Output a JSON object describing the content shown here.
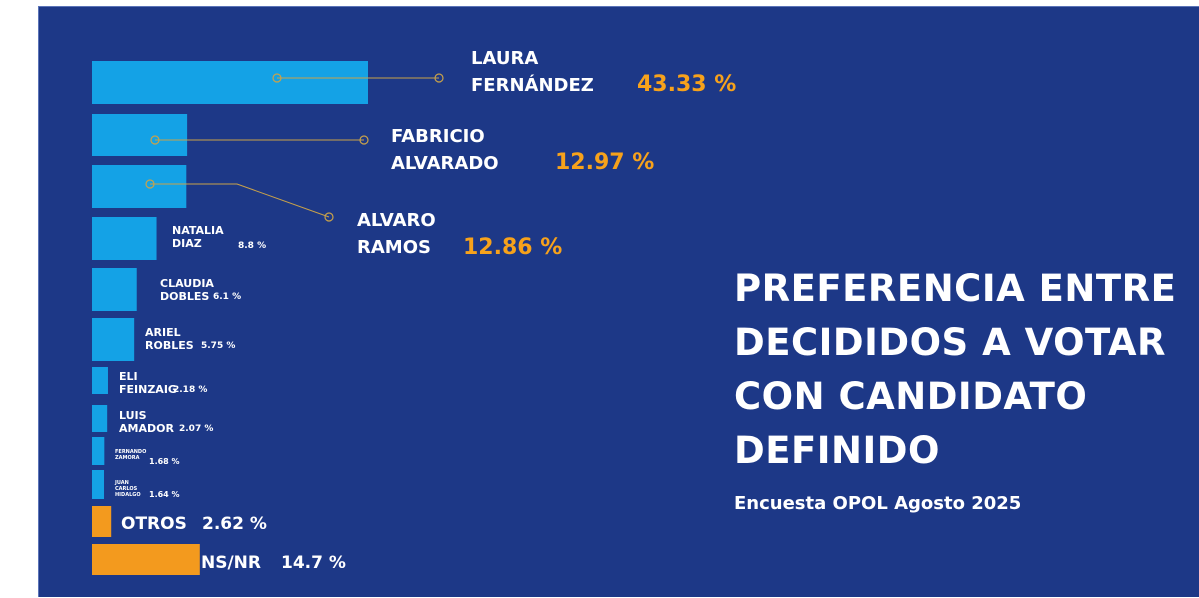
{
  "chart_data": {
    "type": "bar",
    "orientation": "horizontal",
    "title_lines": [
      "PREFERENCIA ENTRE",
      "DECIDIDOS A VOTAR",
      "CON CANDIDATO",
      "DEFINIDO"
    ],
    "subtitle": "Encuesta OPOL Agosto 2025",
    "xlim": [
      0,
      45
    ],
    "grid": false,
    "legend": "none",
    "bars": [
      {
        "label_lines": [
          "LAURA",
          "FERNÁNDEZ"
        ],
        "value_label": "43.33 %",
        "value": 43.33,
        "color": "#14a2e6",
        "style": "callout-large"
      },
      {
        "label_lines": [
          "FABRICIO",
          "ALVARADO"
        ],
        "value_label": "12.97 %",
        "value": 12.97,
        "color": "#14a2e6",
        "style": "callout-large"
      },
      {
        "label_lines": [
          "ALVARO",
          "RAMOS"
        ],
        "value_label": "12.86 %",
        "value": 12.86,
        "color": "#14a2e6",
        "style": "callout-large"
      },
      {
        "label_lines": [
          "NATALIA",
          "DIAZ"
        ],
        "value_label": "8.8 %",
        "value": 8.8,
        "color": "#14a2e6",
        "style": "small"
      },
      {
        "label_lines": [
          "CLAUDIA",
          "DOBLES"
        ],
        "value_label": "6.1 %",
        "value": 6.1,
        "color": "#14a2e6",
        "style": "small"
      },
      {
        "label_lines": [
          "ARIEL",
          "ROBLES"
        ],
        "value_label": "5.75 %",
        "value": 5.75,
        "color": "#14a2e6",
        "style": "small"
      },
      {
        "label_lines": [
          "ELI",
          "FEINZAIG"
        ],
        "value_label": "2.18 %",
        "value": 2.18,
        "color": "#14a2e6",
        "style": "small"
      },
      {
        "label_lines": [
          "LUIS",
          "AMADOR"
        ],
        "value_label": "2.07 %",
        "value": 2.07,
        "color": "#14a2e6",
        "style": "small"
      },
      {
        "label_lines": [
          "FERNANDO",
          "ZAMORA"
        ],
        "value_label": "1.68 %",
        "value": 1.68,
        "color": "#14a2e6",
        "style": "tiny"
      },
      {
        "label_lines": [
          "JUAN",
          "CARLOS",
          "HIDALGO"
        ],
        "value_label": "1.64 %",
        "value": 1.64,
        "color": "#14a2e6",
        "style": "tiny"
      },
      {
        "label_lines": [
          "OTROS"
        ],
        "value_label": "2.62 %",
        "value": 2.62,
        "color": "#f39a1e",
        "style": "inline"
      },
      {
        "label_lines": [
          "NS/NR"
        ],
        "value_label": "14.7 %",
        "value": 14.7,
        "color": "#f39a1e",
        "style": "inline"
      }
    ],
    "colors": {
      "bar_blue": "#14a2e6",
      "bar_orange": "#f39a1e",
      "value_highlight": "#f7a21b",
      "callout_line": "#c9a24a",
      "background": "#1d3887"
    }
  }
}
